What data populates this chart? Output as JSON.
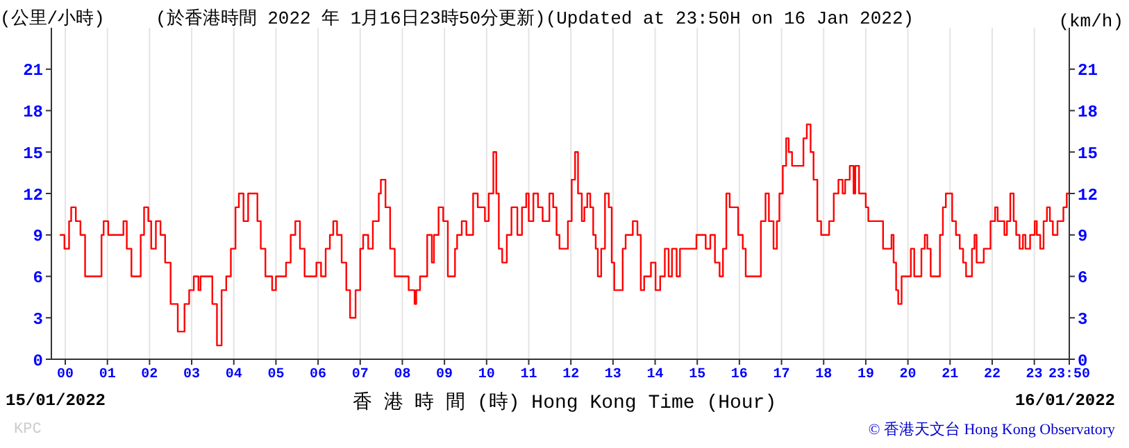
{
  "chart_data": {
    "type": "step",
    "title": "(於香港時間 2022 年 1月16日23時50分更新)(Updated at 23:50H on 16 Jan 2022)",
    "ylabel": "(公里/小時)",
    "y2label": "(km/h)",
    "xlabel": "香 港 時 間 (時) Hong Kong Time (Hour)",
    "annotations": [
      "15/01/2022",
      "16/01/2022",
      "KPC",
      "© 香港天文台 Hong Kong Observatory"
    ],
    "x": [
      -0.13,
      -0.02,
      0.09,
      0.14,
      0.25,
      0.36,
      0.47,
      0.75,
      0.86,
      0.91,
      1.02,
      1.35,
      1.38,
      1.46,
      1.57,
      1.68,
      1.79,
      1.87,
      1.97,
      2.04,
      2.15,
      2.26,
      2.37,
      2.5,
      2.67,
      2.72,
      2.83,
      2.94,
      3.05,
      3.16,
      3.21,
      3.38,
      3.49,
      3.6,
      3.71,
      3.82,
      3.93,
      4.04,
      4.12,
      4.23,
      4.34,
      4.47,
      4.56,
      4.64,
      4.75,
      4.91,
      5.0,
      5.13,
      5.24,
      5.35,
      5.46,
      5.57,
      5.68,
      5.85,
      5.96,
      6.07,
      6.18,
      6.28,
      6.36,
      6.45,
      6.56,
      6.67,
      6.76,
      6.89,
      7.0,
      7.07,
      7.19,
      7.3,
      7.44,
      7.49,
      7.6,
      7.71,
      7.82,
      8.04,
      8.15,
      8.29,
      8.33,
      8.42,
      8.53,
      8.59,
      8.7,
      8.75,
      8.86,
      8.97,
      9.08,
      9.17,
      9.25,
      9.3,
      9.41,
      9.52,
      9.63,
      9.68,
      9.79,
      9.96,
      10.05,
      10.16,
      10.23,
      10.29,
      10.37,
      10.48,
      10.59,
      10.73,
      10.84,
      10.94,
      11.0,
      11.11,
      11.22,
      11.33,
      11.44,
      11.49,
      11.58,
      11.66,
      11.73,
      11.84,
      11.93,
      12.02,
      12.1,
      12.17,
      12.26,
      12.32,
      12.39,
      12.46,
      12.53,
      12.59,
      12.64,
      12.72,
      12.81,
      12.9,
      12.97,
      13.03,
      13.14,
      13.23,
      13.3,
      13.38,
      13.47,
      13.58,
      13.66,
      13.74,
      13.85,
      13.9,
      14.01,
      14.12,
      14.23,
      14.32,
      14.4,
      14.51,
      14.59,
      14.73,
      14.89,
      14.98,
      15.11,
      15.2,
      15.31,
      15.42,
      15.53,
      15.61,
      15.69,
      15.77,
      15.86,
      15.97,
      16.08,
      16.15,
      16.26,
      16.43,
      16.51,
      16.56,
      16.62,
      16.7,
      16.81,
      16.89,
      16.95,
      17.03,
      17.11,
      17.17,
      17.25,
      17.41,
      17.52,
      17.6,
      17.69,
      17.76,
      17.85,
      17.94,
      18.07,
      18.13,
      18.24,
      18.35,
      18.45,
      18.51,
      18.62,
      18.71,
      18.75,
      18.84,
      18.95,
      19.0,
      19.06,
      19.33,
      19.41,
      19.55,
      19.61,
      19.66,
      19.72,
      19.77,
      19.85,
      20.02,
      20.07,
      20.15,
      20.24,
      20.32,
      20.4,
      20.46,
      20.54,
      20.67,
      20.76,
      20.83,
      20.9,
      20.98,
      21.05,
      21.14,
      21.23,
      21.31,
      21.38,
      21.45,
      21.52,
      21.58,
      21.63,
      21.74,
      21.8,
      21.91,
      21.96,
      22.07,
      22.13,
      22.24,
      22.29,
      22.35,
      22.43,
      22.51,
      22.57,
      22.65,
      22.73,
      22.79,
      22.9,
      23.01,
      23.06,
      23.14,
      23.22,
      23.3,
      23.37,
      23.44,
      23.55,
      23.64,
      23.69,
      23.77,
      23.83
    ],
    "values": [
      9,
      8,
      10,
      11,
      10,
      9,
      6,
      6,
      9,
      10,
      9,
      9,
      10,
      8,
      6,
      6,
      9,
      11,
      10,
      8,
      10,
      9,
      7,
      4,
      2,
      2,
      4,
      5,
      6,
      5,
      6,
      6,
      4,
      1,
      5,
      6,
      8,
      11,
      12,
      10,
      12,
      12,
      10,
      8,
      6,
      5,
      6,
      6,
      7,
      9,
      10,
      8,
      6,
      6,
      7,
      6,
      8,
      9,
      10,
      9,
      7,
      5,
      3,
      5,
      8,
      9,
      8,
      10,
      12,
      13,
      11,
      8,
      6,
      6,
      5,
      4,
      5,
      6,
      6,
      9,
      7,
      9,
      11,
      10,
      6,
      6,
      8,
      9,
      10,
      9,
      9,
      12,
      11,
      10,
      12,
      15,
      12,
      8,
      7,
      9,
      11,
      9,
      11,
      12,
      10,
      12,
      11,
      10,
      10,
      12,
      11,
      9,
      8,
      8,
      10,
      13,
      15,
      12,
      10,
      11,
      12,
      11,
      9,
      8,
      6,
      8,
      12,
      11,
      7,
      5,
      5,
      8,
      9,
      9,
      10,
      9,
      5,
      6,
      6,
      7,
      5,
      6,
      8,
      6,
      8,
      6,
      8,
      8,
      8,
      9,
      9,
      8,
      9,
      7,
      6,
      8,
      12,
      11,
      11,
      9,
      8,
      6,
      6,
      6,
      10,
      10,
      12,
      10,
      8,
      10,
      12,
      14,
      16,
      15,
      14,
      14,
      16,
      17,
      15,
      13,
      10,
      9,
      9,
      10,
      12,
      13,
      12,
      13,
      14,
      12,
      14,
      12,
      12,
      11,
      10,
      10,
      8,
      8,
      9,
      7,
      5,
      4,
      6,
      6,
      8,
      6,
      6,
      8,
      9,
      8,
      6,
      6,
      9,
      11,
      12,
      12,
      10,
      9,
      8,
      7,
      6,
      6,
      8,
      9,
      7,
      7,
      8,
      8,
      10,
      11,
      10,
      10,
      9,
      10,
      12,
      10,
      9,
      8,
      9,
      8,
      9,
      10,
      9,
      8,
      10,
      11,
      10,
      9,
      10,
      10,
      11,
      12,
      12
    ],
    "color": "#ff0000",
    "xlim": [
      -0.33,
      23.83
    ],
    "xticks": [
      {
        "value": 0,
        "label": "00"
      },
      {
        "value": 1,
        "label": "01"
      },
      {
        "value": 2,
        "label": "02"
      },
      {
        "value": 3,
        "label": "03"
      },
      {
        "value": 4,
        "label": "04"
      },
      {
        "value": 5,
        "label": "05"
      },
      {
        "value": 6,
        "label": "06"
      },
      {
        "value": 7,
        "label": "07"
      },
      {
        "value": 8,
        "label": "08"
      },
      {
        "value": 9,
        "label": "09"
      },
      10,
      11,
      12,
      13,
      14,
      15,
      16,
      17,
      18,
      19,
      20,
      21,
      22,
      23,
      {
        "value": 23.83,
        "label": "23:50"
      }
    ],
    "ylim": [
      0,
      24
    ],
    "yticks": [
      0,
      3,
      6,
      9,
      12,
      15,
      18,
      21
    ],
    "y2lim": [
      0,
      24
    ],
    "y2ticks": [
      0,
      3,
      6,
      9,
      12,
      15,
      18,
      21
    ],
    "grid": true
  }
}
